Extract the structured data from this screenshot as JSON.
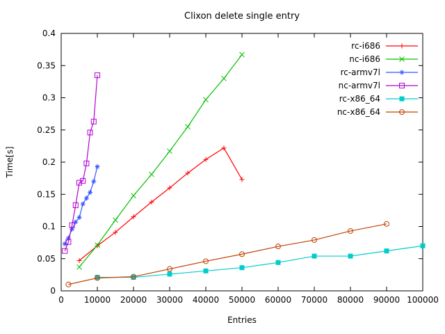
{
  "chart_data": {
    "type": "line",
    "title": "Clixon delete single entry",
    "xlabel": "Entries",
    "ylabel": "Time[s]",
    "xlim": [
      0,
      100000
    ],
    "ylim": [
      0,
      0.4
    ],
    "xticks": [
      0,
      10000,
      20000,
      30000,
      40000,
      50000,
      60000,
      70000,
      80000,
      90000,
      100000
    ],
    "yticks": [
      0,
      0.05,
      0.1,
      0.15,
      0.2,
      0.25,
      0.3,
      0.35,
      0.4
    ],
    "grid": false,
    "legend_position": "top-right-inside",
    "series": [
      {
        "name": "rc-i686",
        "color": "#ff0000",
        "marker": "plus",
        "x": [
          5000,
          10000,
          15000,
          20000,
          25000,
          30000,
          35000,
          40000,
          45000,
          50000
        ],
        "y": [
          0.047,
          0.07,
          0.091,
          0.115,
          0.138,
          0.16,
          0.183,
          0.204,
          0.222,
          0.173
        ]
      },
      {
        "name": "nc-i686",
        "color": "#00c000",
        "marker": "cross",
        "x": [
          5000,
          10000,
          15000,
          20000,
          25000,
          30000,
          35000,
          40000,
          45000,
          50000
        ],
        "y": [
          0.037,
          0.071,
          0.11,
          0.148,
          0.181,
          0.217,
          0.255,
          0.297,
          0.33,
          0.367
        ]
      },
      {
        "name": "rc-armv7l",
        "color": "#3355ff",
        "marker": "asterisk",
        "x": [
          1000,
          2000,
          3000,
          4000,
          5000,
          6000,
          7000,
          8000,
          9000,
          10000
        ],
        "y": [
          0.073,
          0.082,
          0.096,
          0.107,
          0.114,
          0.135,
          0.144,
          0.153,
          0.17,
          0.193
        ]
      },
      {
        "name": "nc-armv7l",
        "color": "#b000d0",
        "marker": "square-open",
        "x": [
          1000,
          2000,
          3000,
          4000,
          5000,
          6000,
          7000,
          8000,
          9000,
          10000
        ],
        "y": [
          0.062,
          0.076,
          0.102,
          0.133,
          0.168,
          0.171,
          0.198,
          0.246,
          0.263,
          0.335
        ]
      },
      {
        "name": "rc-x86_64",
        "color": "#00cccc",
        "marker": "square-filled",
        "x": [
          10000,
          20000,
          30000,
          40000,
          50000,
          60000,
          70000,
          80000,
          90000,
          100000
        ],
        "y": [
          0.021,
          0.021,
          0.026,
          0.031,
          0.036,
          0.044,
          0.054,
          0.054,
          0.062,
          0.07
        ]
      },
      {
        "name": "nc-x86_64",
        "color": "#c04000",
        "marker": "circle-open",
        "x": [
          2000,
          10000,
          20000,
          30000,
          40000,
          50000,
          60000,
          70000,
          80000,
          90000
        ],
        "y": [
          0.01,
          0.02,
          0.022,
          0.034,
          0.046,
          0.057,
          0.069,
          0.079,
          0.093,
          0.104
        ]
      }
    ]
  }
}
